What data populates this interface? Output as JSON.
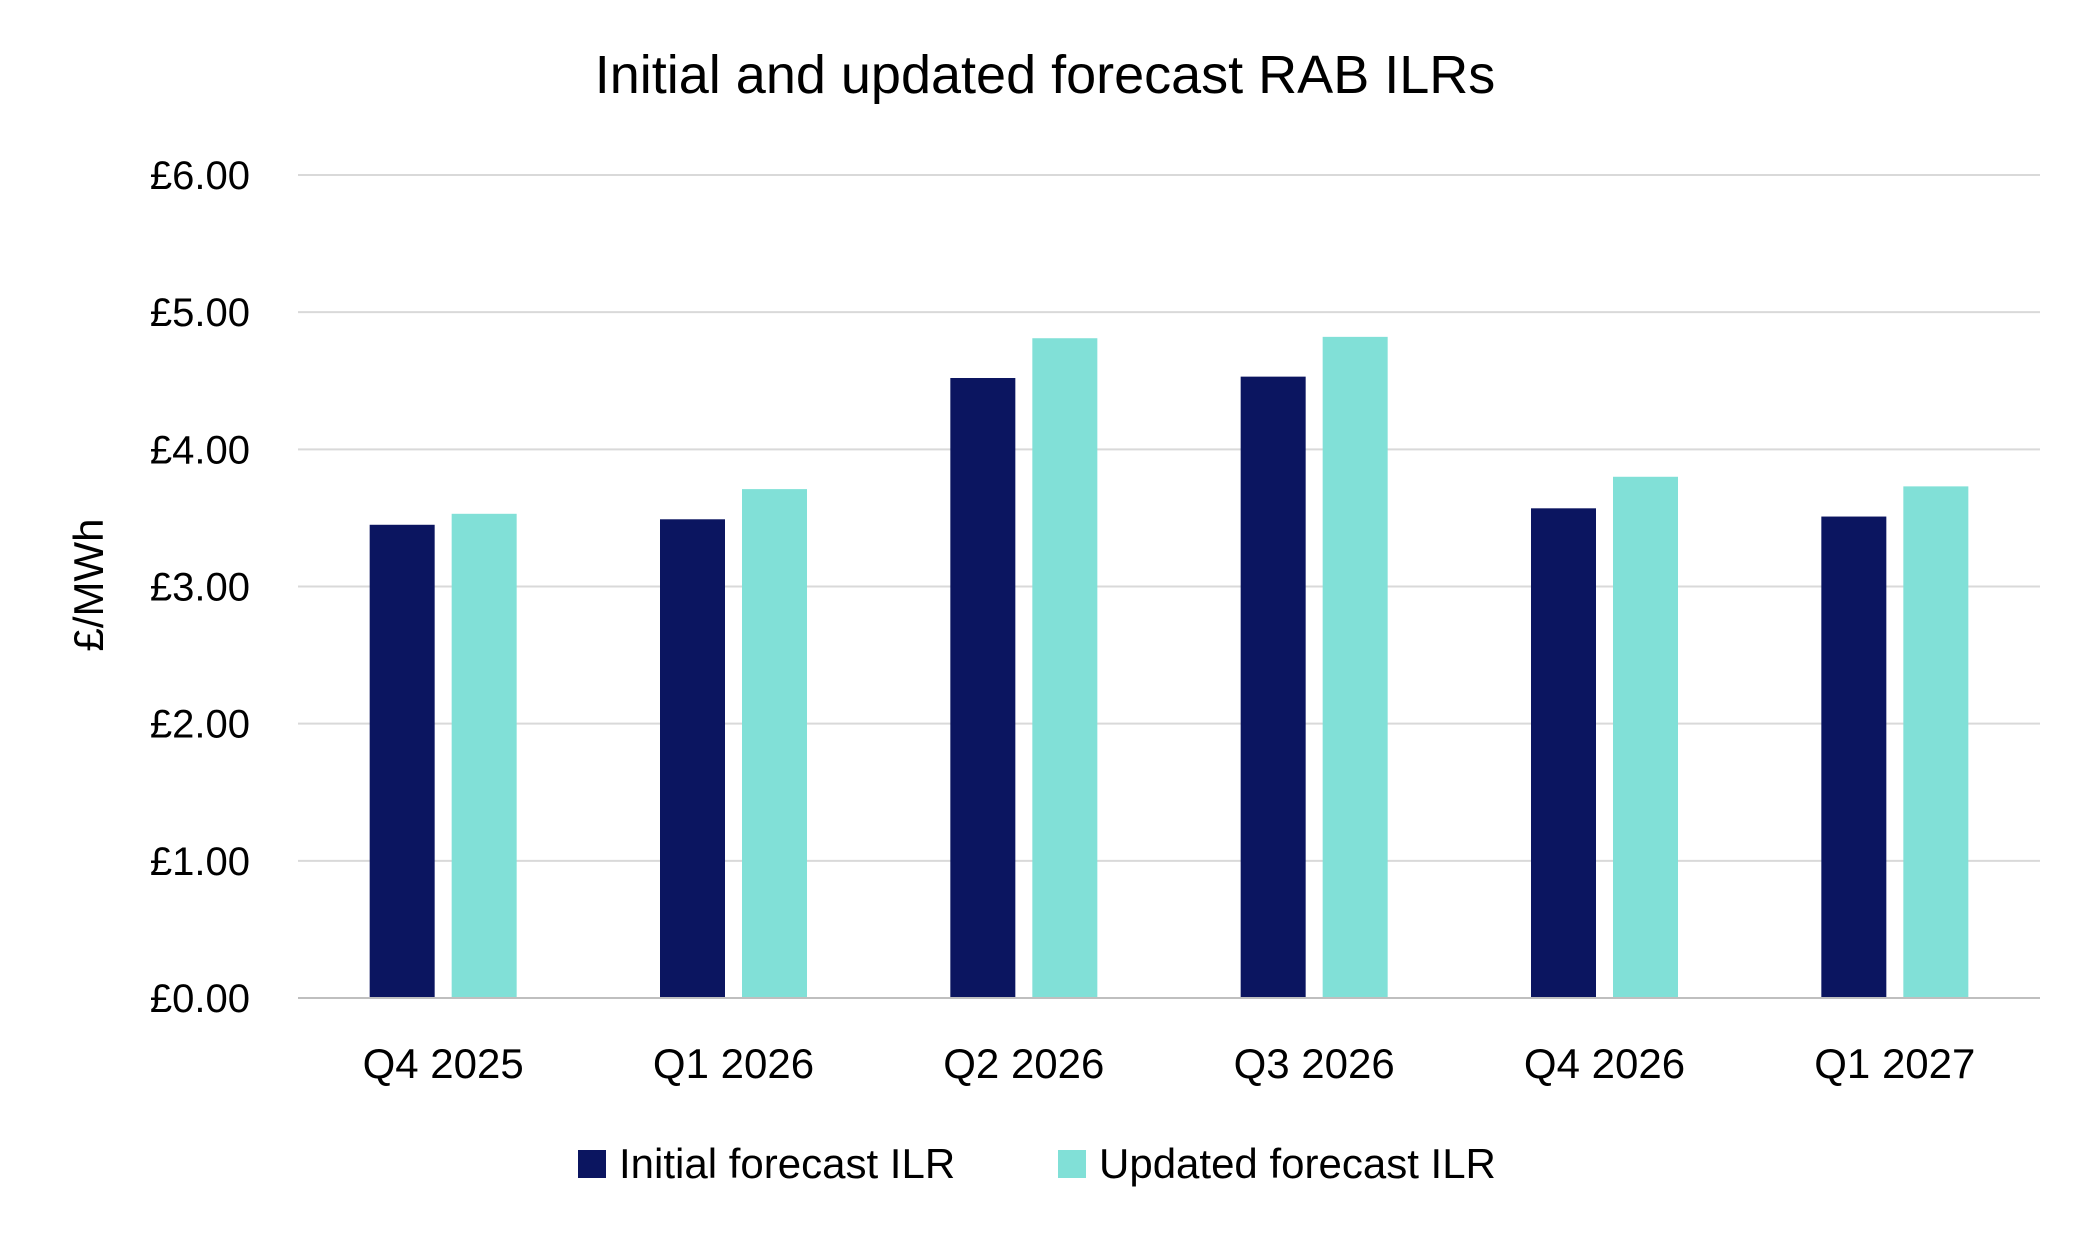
{
  "chart_data": {
    "type": "bar",
    "title": "Initial and updated forecast RAB ILRs",
    "xlabel": "",
    "ylabel": "£/MWh",
    "categories": [
      "Q4 2025",
      "Q1 2026",
      "Q2 2026",
      "Q3 2026",
      "Q4 2026",
      "Q1 2027"
    ],
    "series": [
      {
        "name": "Initial forecast ILR",
        "color": "#0b1560",
        "values": [
          3.45,
          3.49,
          4.52,
          4.53,
          3.57,
          3.51
        ]
      },
      {
        "name": "Updated forecast ILR",
        "color": "#81e0d7",
        "values": [
          3.53,
          3.71,
          4.81,
          4.82,
          3.8,
          3.73
        ]
      }
    ],
    "ylim": [
      0,
      6
    ],
    "yticks": [
      0,
      1,
      2,
      3,
      4,
      5,
      6
    ],
    "ytick_labels": [
      "£0.00",
      "£1.00",
      "£2.00",
      "£3.00",
      "£4.00",
      "£5.00",
      "£6.00"
    ],
    "grid": true,
    "legend_position": "bottom-center"
  }
}
